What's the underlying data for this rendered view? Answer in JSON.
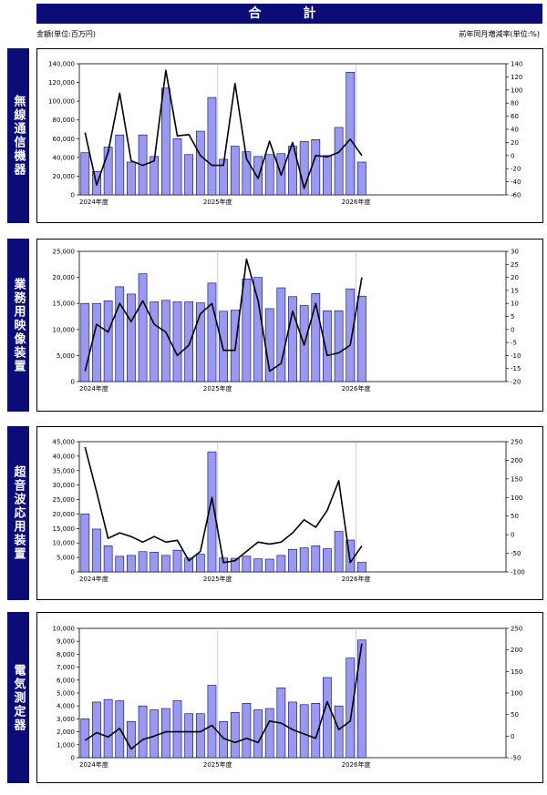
{
  "header": {
    "title": "合　計",
    "unit_left": "金額(単位:百万円)",
    "unit_right": "前年同月増減率(単位:%)"
  },
  "colors": {
    "bar": "#9999ee",
    "bar_stroke": "#000080",
    "line": "#000000",
    "side": "#0c0c78"
  },
  "chart_data": [
    {
      "type": "bar",
      "title": "無線通信機器",
      "year_labels": [
        "2024年度",
        "2025年度",
        "2026年度"
      ],
      "ylim": [
        0,
        140000
      ],
      "yticks": [
        "0",
        "20,000",
        "40,000",
        "60,000",
        "80,000",
        "100,000",
        "120,000",
        "140,000"
      ],
      "y2lim": [
        -60,
        140
      ],
      "y2ticks": [
        "-60",
        "-40",
        "-20",
        "0",
        "20",
        "40",
        "60",
        "80",
        "100",
        "120",
        "140"
      ],
      "series": [
        {
          "kind": "bar",
          "values": [
            45000,
            25000,
            51000,
            64000,
            35000,
            64000,
            41000,
            114000,
            60000,
            43000,
            68000,
            104000,
            38000,
            52000,
            46000,
            41000,
            43000,
            44000,
            52000,
            57000,
            59000,
            42000,
            72000,
            131000,
            35000
          ]
        },
        {
          "kind": "line",
          "values": [
            35,
            -45,
            5,
            95,
            -8,
            -15,
            -8,
            130,
            30,
            32,
            0,
            -15,
            -15,
            110,
            -5,
            -35,
            22,
            -30,
            20,
            -50,
            0,
            -2,
            5,
            25,
            0
          ]
        }
      ]
    },
    {
      "type": "bar",
      "title": "業務用映像装置",
      "year_labels": [
        "2024年度",
        "2025年度",
        "2026年度"
      ],
      "ylim": [
        0,
        25000
      ],
      "yticks": [
        "0",
        "5,000",
        "10,000",
        "15,000",
        "20,000",
        "25,000"
      ],
      "y2lim": [
        -20,
        30
      ],
      "y2ticks": [
        "-20",
        "-15",
        "-10",
        "-5",
        "0",
        "5",
        "10",
        "15",
        "20",
        "25",
        "30"
      ],
      "series": [
        {
          "kind": "bar",
          "values": [
            15000,
            15000,
            15500,
            18200,
            16800,
            20700,
            15300,
            15600,
            15300,
            15300,
            15100,
            18900,
            13500,
            13700,
            19700,
            20000,
            14000,
            18000,
            16300,
            14600,
            16900,
            13600,
            13600,
            17800,
            16400
          ]
        },
        {
          "kind": "line",
          "values": [
            -16,
            2,
            -1,
            10,
            3,
            11,
            2,
            -1,
            -10,
            -6,
            6,
            10,
            -8,
            -8,
            27,
            11,
            -16,
            -13,
            7,
            -6,
            10,
            -10,
            -9,
            -6,
            20
          ]
        }
      ]
    },
    {
      "type": "bar",
      "title": "超音波応用装置",
      "year_labels": [
        "2024年度",
        "2025年度",
        "2026年度"
      ],
      "ylim": [
        0,
        45000
      ],
      "yticks": [
        "0",
        "5,000",
        "10,000",
        "15,000",
        "20,000",
        "25,000",
        "30,000",
        "35,000",
        "40,000",
        "45,000"
      ],
      "y2lim": [
        -100,
        250
      ],
      "y2ticks": [
        "-100",
        "-50",
        "0",
        "50",
        "100",
        "150",
        "200",
        "250"
      ],
      "series": [
        {
          "kind": "bar",
          "values": [
            20000,
            14800,
            9000,
            5400,
            5700,
            7000,
            6800,
            5700,
            7500,
            4800,
            6100,
            41500,
            4800,
            4700,
            5400,
            4500,
            4400,
            5700,
            7800,
            8300,
            9000,
            8000,
            14000,
            11000,
            3300
          ]
        },
        {
          "kind": "line",
          "values": [
            235,
            115,
            -10,
            5,
            -5,
            -20,
            -5,
            -20,
            -15,
            -70,
            -45,
            100,
            -75,
            -70,
            -45,
            -20,
            -25,
            -20,
            5,
            40,
            20,
            65,
            145,
            -75,
            -30
          ]
        }
      ]
    },
    {
      "type": "bar",
      "title": "電気測定器",
      "year_labels": [
        "2024年度",
        "2025年度",
        "2026年度"
      ],
      "ylim": [
        0,
        10000
      ],
      "yticks": [
        "0",
        "1,000",
        "2,000",
        "3,000",
        "4,000",
        "5,000",
        "6,000",
        "7,000",
        "8,000",
        "9,000",
        "10,000"
      ],
      "y2lim": [
        -50,
        250
      ],
      "y2ticks": [
        "-50",
        "0",
        "50",
        "100",
        "150",
        "200",
        "250"
      ],
      "series": [
        {
          "kind": "bar",
          "values": [
            3000,
            4300,
            4500,
            4400,
            2800,
            4000,
            3700,
            3800,
            4400,
            3400,
            3400,
            5600,
            2800,
            3500,
            4200,
            3700,
            3800,
            5400,
            4300,
            4100,
            4200,
            6200,
            4000,
            7700,
            9100
          ]
        },
        {
          "kind": "line",
          "values": [
            -10,
            8,
            -2,
            18,
            -30,
            -8,
            0,
            10,
            10,
            10,
            10,
            25,
            -5,
            -15,
            -5,
            -15,
            35,
            30,
            15,
            5,
            -5,
            80,
            15,
            35,
            215
          ]
        }
      ]
    }
  ]
}
